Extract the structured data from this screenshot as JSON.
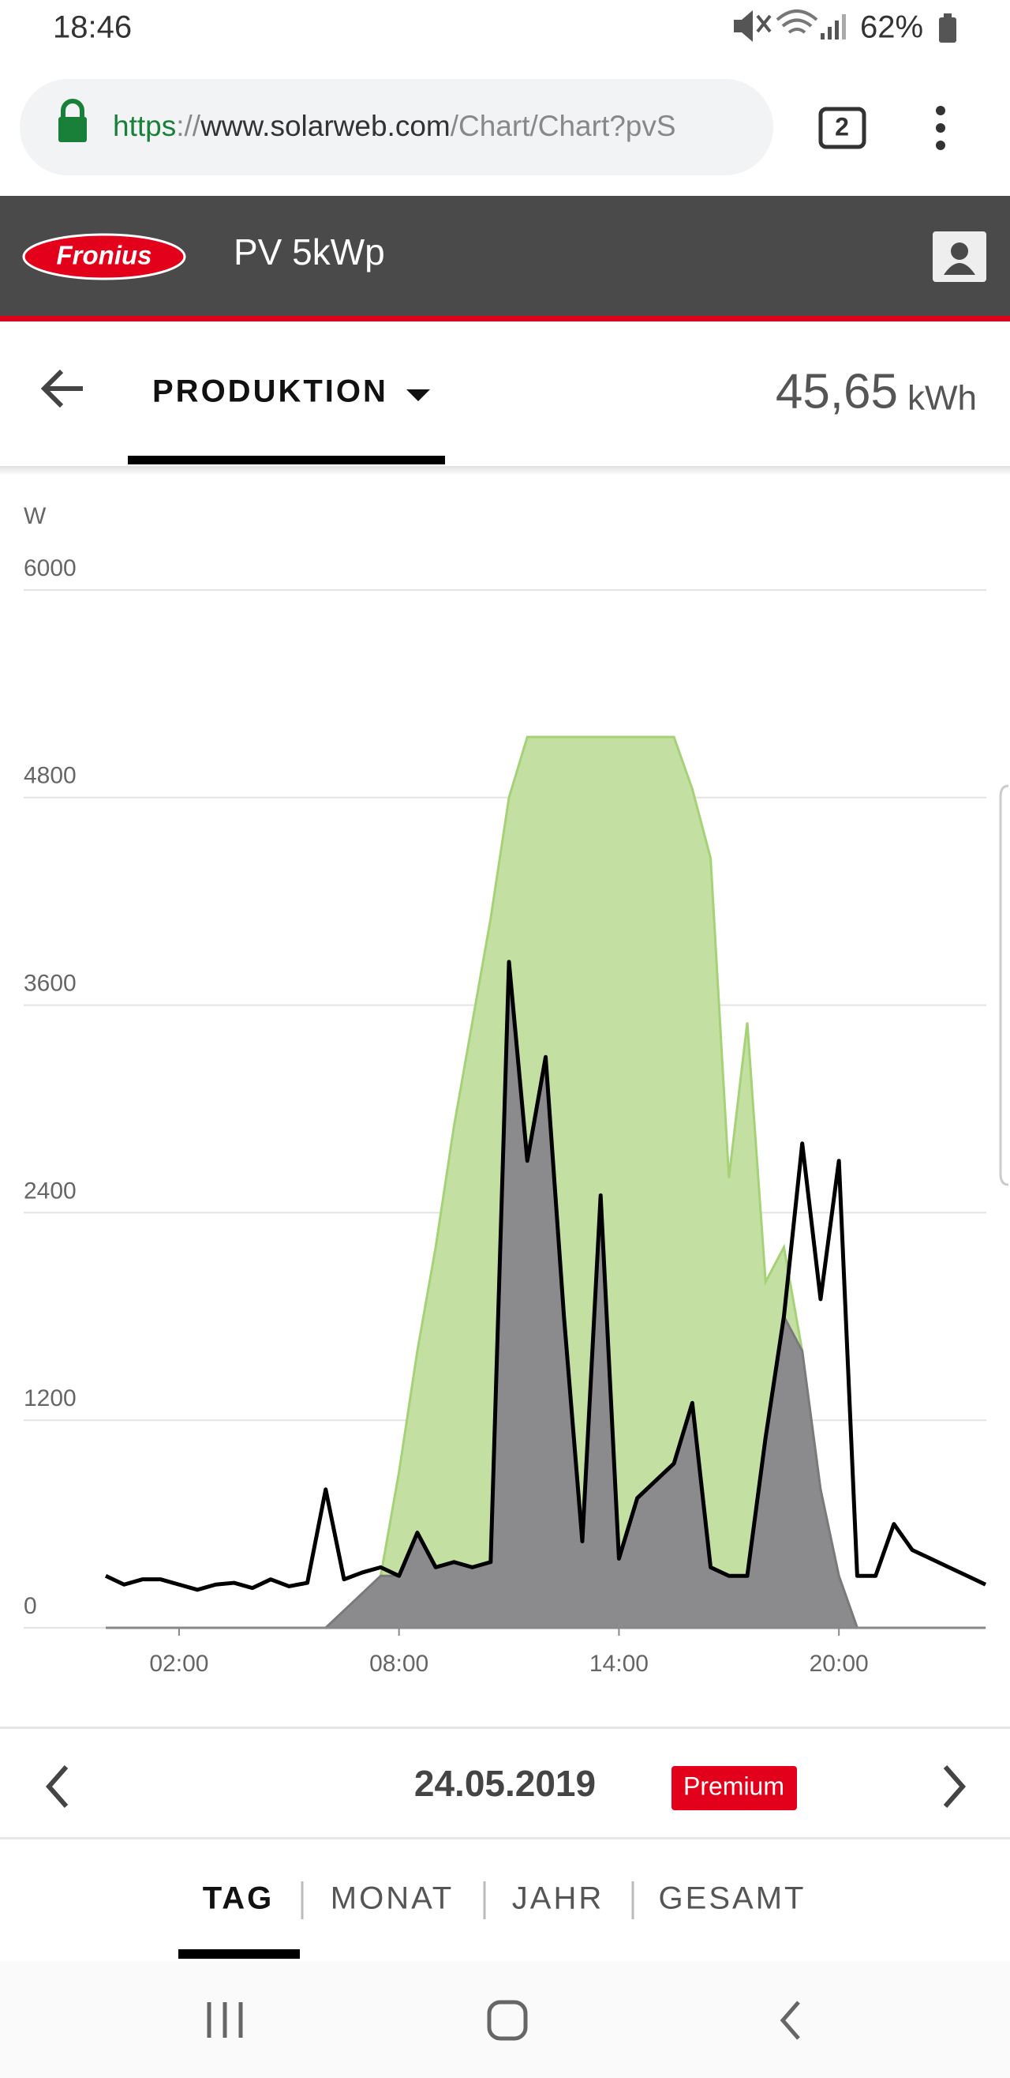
{
  "status": {
    "time": "18:46",
    "battery": "62%"
  },
  "url": {
    "scheme": "https",
    "separator": "://",
    "host": "www.solarweb.com",
    "path": "/Chart/Chart?pvS"
  },
  "tab_count": "2",
  "header": {
    "brand": "Fronius",
    "title": "PV 5kWp"
  },
  "view": {
    "label": "PRODUKTION",
    "total": "45,65",
    "unit": "kWh"
  },
  "chart_data": {
    "type": "line",
    "ylabel": "W",
    "x": [
      "00:00",
      "00:30",
      "01:00",
      "01:30",
      "02:00",
      "02:30",
      "03:00",
      "03:30",
      "04:00",
      "04:30",
      "05:00",
      "05:30",
      "06:00",
      "06:30",
      "07:00",
      "07:30",
      "08:00",
      "08:30",
      "09:00",
      "09:30",
      "10:00",
      "10:30",
      "11:00",
      "11:30",
      "12:00",
      "12:30",
      "13:00",
      "13:30",
      "14:00",
      "14:30",
      "15:00",
      "15:30",
      "16:00",
      "16:30",
      "17:00",
      "17:30",
      "18:00",
      "18:30",
      "19:00",
      "19:30",
      "20:00",
      "20:30",
      "21:00",
      "21:30",
      "22:00",
      "22:30",
      "23:00",
      "23:30",
      "24:00"
    ],
    "xlim": [
      "00:00",
      "24:00"
    ],
    "xticks": [
      "02:00",
      "08:00",
      "14:00",
      "20:00"
    ],
    "ylim": [
      0,
      6000
    ],
    "yticks": [
      0,
      1200,
      2400,
      3600,
      4800,
      6000
    ],
    "grid": true,
    "series": [
      {
        "style": "area",
        "color": "#c3e0a2",
        "stroke": "#a5d276",
        "values": [
          0,
          0,
          0,
          0,
          0,
          0,
          0,
          0,
          0,
          0,
          0,
          0,
          0,
          0,
          0,
          300,
          900,
          1600,
          2200,
          2900,
          3500,
          4100,
          4800,
          5150,
          5150,
          5150,
          5150,
          5150,
          5150,
          5150,
          5150,
          5150,
          4850,
          4450,
          2600,
          3500,
          2000,
          2200,
          1600,
          800,
          300,
          0,
          0,
          0,
          0,
          0,
          0,
          0,
          0
        ]
      },
      {
        "style": "area",
        "color": "#8b8b8d",
        "stroke": "#7a7a7c",
        "values": [
          0,
          0,
          0,
          0,
          0,
          0,
          0,
          0,
          0,
          0,
          0,
          0,
          0,
          100,
          200,
          300,
          300,
          550,
          350,
          380,
          350,
          380,
          3850,
          2700,
          3300,
          1800,
          500,
          2500,
          400,
          750,
          850,
          950,
          1300,
          350,
          300,
          300,
          1100,
          1800,
          1600,
          800,
          300,
          0,
          0,
          0,
          0,
          0,
          0,
          0,
          0
        ]
      },
      {
        "style": "line",
        "color": "#000000",
        "values": [
          300,
          250,
          280,
          280,
          250,
          220,
          250,
          260,
          230,
          280,
          240,
          260,
          800,
          280,
          320,
          350,
          300,
          550,
          350,
          380,
          350,
          380,
          3850,
          2700,
          3300,
          1800,
          500,
          2500,
          400,
          750,
          850,
          950,
          1300,
          350,
          300,
          300,
          1100,
          1800,
          2800,
          1900,
          2700,
          300,
          300,
          600,
          450,
          400,
          350,
          300,
          250
        ]
      }
    ]
  },
  "date_nav": {
    "date": "24.05.2019",
    "badge": "Premium"
  },
  "periods": [
    "TAG",
    "MONAT",
    "JAHR",
    "GESAMT"
  ]
}
